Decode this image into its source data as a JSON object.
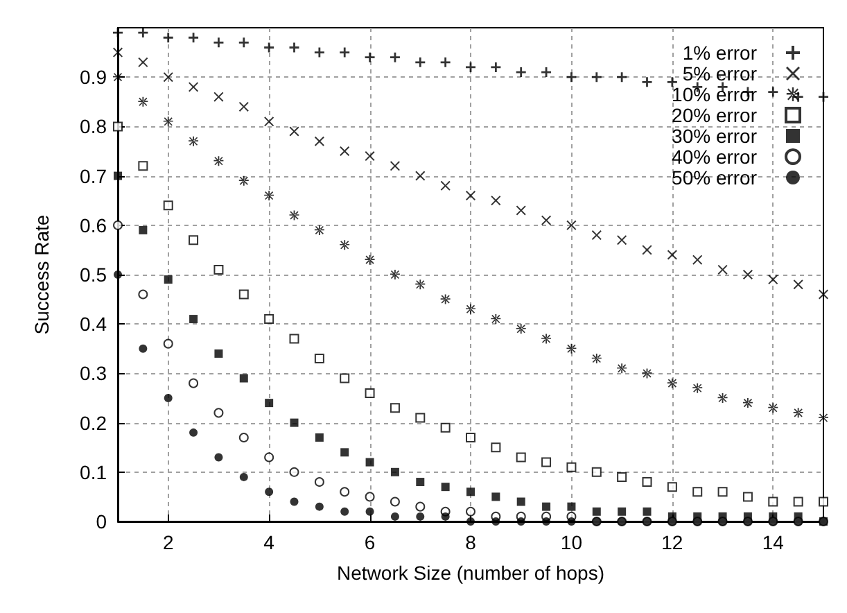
{
  "chart_data": {
    "type": "scatter",
    "xlabel": "Network Size (number of hops)",
    "ylabel": "Success Rate",
    "x": [
      1,
      1.5,
      2,
      2.5,
      3,
      3.5,
      4,
      4.5,
      5,
      5.5,
      6,
      6.5,
      7,
      7.5,
      8,
      8.5,
      9,
      9.5,
      10,
      10.5,
      11,
      11.5,
      12,
      12.5,
      13,
      13.5,
      14,
      14.5,
      15
    ],
    "series": [
      {
        "name": "1% error",
        "color": "#000000",
        "marker": "cross",
        "values": [
          0.99,
          0.99,
          0.98,
          0.98,
          0.97,
          0.97,
          0.96,
          0.96,
          0.95,
          0.95,
          0.94,
          0.94,
          0.93,
          0.93,
          0.92,
          0.92,
          0.91,
          0.91,
          0.9,
          0.9,
          0.9,
          0.89,
          0.89,
          0.88,
          0.88,
          0.87,
          0.87,
          0.86,
          0.86
        ]
      },
      {
        "name": "5% error",
        "color": "#000000",
        "marker": "x",
        "values": [
          0.95,
          0.93,
          0.9,
          0.88,
          0.86,
          0.84,
          0.81,
          0.79,
          0.77,
          0.75,
          0.74,
          0.72,
          0.7,
          0.68,
          0.66,
          0.65,
          0.63,
          0.61,
          0.6,
          0.58,
          0.57,
          0.55,
          0.54,
          0.53,
          0.51,
          0.5,
          0.49,
          0.48,
          0.46
        ]
      },
      {
        "name": "10% error",
        "color": "#000000",
        "marker": "star",
        "values": [
          0.9,
          0.85,
          0.81,
          0.77,
          0.73,
          0.69,
          0.66,
          0.62,
          0.59,
          0.56,
          0.53,
          0.5,
          0.48,
          0.45,
          0.43,
          0.41,
          0.39,
          0.37,
          0.35,
          0.33,
          0.31,
          0.3,
          0.28,
          0.27,
          0.25,
          0.24,
          0.23,
          0.22,
          0.21
        ]
      },
      {
        "name": "20% error",
        "color": "#000000",
        "marker": "square-open",
        "values": [
          0.8,
          0.72,
          0.64,
          0.57,
          0.51,
          0.46,
          0.41,
          0.37,
          0.33,
          0.29,
          0.26,
          0.23,
          0.21,
          0.19,
          0.17,
          0.15,
          0.13,
          0.12,
          0.11,
          0.1,
          0.09,
          0.08,
          0.07,
          0.06,
          0.06,
          0.05,
          0.04,
          0.04,
          0.04
        ]
      },
      {
        "name": "30% error",
        "color": "#000000",
        "marker": "square",
        "values": [
          0.7,
          0.59,
          0.49,
          0.41,
          0.34,
          0.29,
          0.24,
          0.2,
          0.17,
          0.14,
          0.12,
          0.1,
          0.08,
          0.07,
          0.06,
          0.05,
          0.04,
          0.03,
          0.03,
          0.02,
          0.02,
          0.02,
          0.01,
          0.01,
          0.01,
          0.01,
          0.01,
          0.01,
          0
        ]
      },
      {
        "name": "40% error",
        "color": "#000000",
        "marker": "circle-open",
        "values": [
          0.6,
          0.46,
          0.36,
          0.28,
          0.22,
          0.17,
          0.13,
          0.1,
          0.08,
          0.06,
          0.05,
          0.04,
          0.03,
          0.02,
          0.02,
          0.01,
          0.01,
          0.01,
          0.01,
          0,
          0,
          0,
          0,
          0,
          0,
          0,
          0,
          0,
          0
        ]
      },
      {
        "name": "50% error",
        "color": "#000000",
        "marker": "circle",
        "values": [
          0.5,
          0.35,
          0.25,
          0.18,
          0.13,
          0.09,
          0.06,
          0.04,
          0.03,
          0.02,
          0.02,
          0.01,
          0.01,
          0.01,
          0,
          0,
          0,
          0,
          0,
          0,
          0,
          0,
          0,
          0,
          0,
          0,
          0,
          0,
          0
        ]
      }
    ],
    "xlim": [
      1,
      15
    ],
    "xticks": [
      2,
      4,
      6,
      8,
      10,
      12,
      14
    ],
    "ylim": [
      0,
      1
    ],
    "yticks": [
      0,
      0.1,
      0.2,
      0.3,
      0.4,
      0.5,
      0.6,
      0.7,
      0.8,
      0.9
    ],
    "grid": true,
    "legend": "top right"
  }
}
